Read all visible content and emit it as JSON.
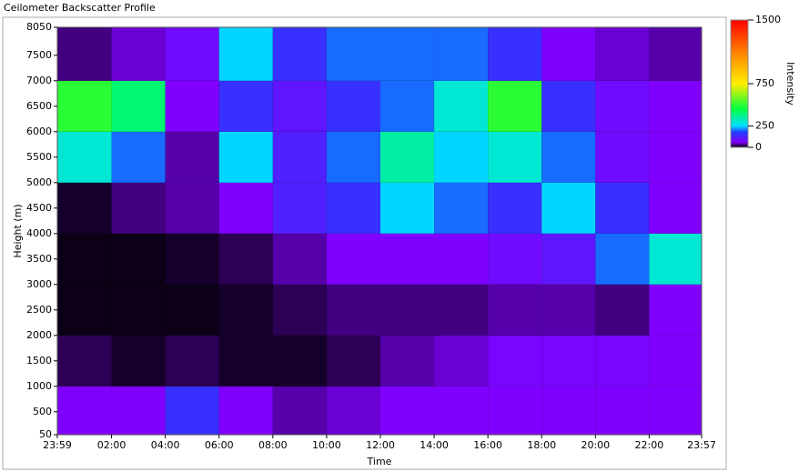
{
  "chart_data": {
    "type": "heatmap",
    "title": "Ceilometer Backscatter Profile",
    "x_label": "Time",
    "y_label": "Height (m)",
    "colorbar_label": "Intensity",
    "xlim": [
      0,
      1438
    ],
    "xticks": [
      {
        "value": 0,
        "label": "23:59"
      },
      {
        "value": 121,
        "label": "02:00"
      },
      {
        "value": 241,
        "label": "04:00"
      },
      {
        "value": 361,
        "label": "06:00"
      },
      {
        "value": 481,
        "label": "08:00"
      },
      {
        "value": 601,
        "label": "10:00"
      },
      {
        "value": 721,
        "label": "12:00"
      },
      {
        "value": 841,
        "label": "14:00"
      },
      {
        "value": 961,
        "label": "16:00"
      },
      {
        "value": 1081,
        "label": "18:00"
      },
      {
        "value": 1201,
        "label": "20:00"
      },
      {
        "value": 1321,
        "label": "22:00"
      },
      {
        "value": 1438,
        "label": "23:57"
      }
    ],
    "ylim": [
      50,
      8050
    ],
    "yticks": [
      50,
      500,
      1000,
      1500,
      2000,
      2500,
      3000,
      3500,
      4000,
      4500,
      5000,
      5500,
      6000,
      6500,
      7000,
      7500,
      8050
    ],
    "clim": [
      0,
      1500
    ],
    "cticks": [
      0,
      250,
      750,
      1500
    ],
    "x_bins": [
      0,
      121,
      241,
      361,
      481,
      601,
      721,
      841,
      961,
      1081,
      1201,
      1321,
      1438
    ],
    "y_bins": [
      50,
      1000,
      2000,
      3000,
      4000,
      5000,
      6000,
      7000,
      8050
    ],
    "z": [
      [
        60,
        60,
        150,
        60,
        40,
        50,
        60,
        60,
        60,
        60,
        60,
        60
      ],
      [
        20,
        10,
        20,
        10,
        10,
        20,
        40,
        50,
        70,
        70,
        70,
        60
      ],
      [
        5,
        5,
        5,
        10,
        20,
        30,
        30,
        30,
        40,
        40,
        30,
        60
      ],
      [
        5,
        5,
        10,
        20,
        40,
        60,
        60,
        60,
        80,
        100,
        200,
        300
      ],
      [
        10,
        30,
        40,
        60,
        120,
        150,
        250,
        200,
        150,
        250,
        150,
        60
      ],
      [
        300,
        200,
        40,
        250,
        120,
        200,
        350,
        250,
        300,
        200,
        80,
        60
      ],
      [
        500,
        400,
        60,
        150,
        100,
        150,
        200,
        300,
        500,
        150,
        80,
        60
      ],
      [
        30,
        50,
        80,
        250,
        150,
        200,
        200,
        200,
        150,
        60,
        50,
        40
      ]
    ]
  }
}
